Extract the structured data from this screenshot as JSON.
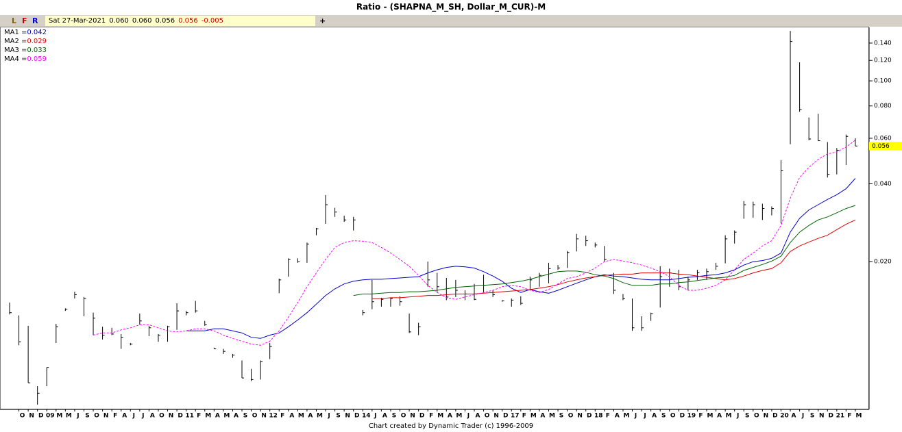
{
  "chart_data": {
    "type": "ohlc",
    "title": "Ratio - (SHAPNA_M_SH, Dollar_M_CUR)-M",
    "categories": [
      null,
      "O",
      "N",
      "D",
      "09",
      "M",
      "M",
      "J",
      "S",
      "O",
      "N",
      "F",
      "A",
      "J",
      "J",
      "A",
      "O",
      "N",
      "D",
      "11",
      "F",
      "M",
      "A",
      "M",
      "A",
      "S",
      "O",
      "N",
      "12",
      "F",
      "A",
      "M",
      "A",
      "M",
      "J",
      "S",
      "N",
      "D",
      "14",
      "J",
      "A",
      "S",
      "O",
      "N",
      "D",
      "F",
      "M",
      "A",
      "M",
      "J",
      "A",
      "O",
      "N",
      "D",
      "17",
      "F",
      "M",
      "A",
      "M",
      "S",
      "O",
      "N",
      "D",
      "18",
      "F",
      "A",
      "M",
      "J",
      "J",
      "A",
      "S",
      "O",
      "D",
      "19",
      "F",
      "M",
      "A",
      "M",
      "J",
      "S",
      "O",
      "N",
      "D",
      "20",
      "A",
      "J",
      "S",
      "N",
      "D",
      "21",
      "F",
      "M"
    ],
    "high": [
      0.0139,
      0.0124,
      0.0113,
      0.0066,
      0.0078,
      0.0115,
      0.0132,
      0.0153,
      0.0146,
      0.0127,
      0.0112,
      0.0111,
      0.0105,
      0.0097,
      0.0126,
      0.0113,
      0.0105,
      0.0113,
      0.0138,
      0.0129,
      0.0141,
      0.0118,
      0.0093,
      0.0092,
      0.0088,
      0.0083,
      0.0077,
      0.0083,
      0.0097,
      0.0172,
      0.0206,
      0.0206,
      0.0237,
      0.027,
      0.0362,
      0.0323,
      0.0301,
      0.0298,
      0.013,
      0.017,
      0.0145,
      0.0145,
      0.0147,
      0.0126,
      0.0116,
      0.02,
      0.0181,
      0.0173,
      0.017,
      0.0155,
      0.0164,
      0.0178,
      0.0155,
      0.0142,
      0.0144,
      0.0147,
      0.0175,
      0.0181,
      0.0198,
      0.0194,
      0.022,
      0.0256,
      0.0252,
      0.0237,
      0.023,
      0.0181,
      0.015,
      0.0144,
      0.0123,
      0.0127,
      0.0192,
      0.0188,
      0.0186,
      0.0175,
      0.0186,
      0.0188,
      0.0198,
      0.0253,
      0.0264,
      0.0343,
      0.0341,
      0.0335,
      0.0327,
      0.0494,
      0.156,
      0.118,
      0.0722,
      0.0746,
      0.058,
      0.055,
      0.062,
      0.06
    ],
    "low": [
      0.0125,
      0.0095,
      0.0068,
      0.0056,
      0.0066,
      0.0097,
      0.0129,
      0.0144,
      0.0123,
      0.0104,
      0.01,
      0.0104,
      0.0092,
      0.0095,
      0.0114,
      0.0103,
      0.0098,
      0.0098,
      0.0109,
      0.0124,
      0.0127,
      0.0113,
      0.0092,
      0.0088,
      0.0085,
      0.0071,
      0.0069,
      0.007,
      0.0084,
      0.0151,
      0.0175,
      0.0198,
      0.0198,
      0.0253,
      0.028,
      0.0298,
      0.0285,
      0.0264,
      0.0124,
      0.0131,
      0.0134,
      0.0134,
      0.0135,
      0.0106,
      0.0104,
      0.016,
      0.0152,
      0.0142,
      0.0146,
      0.0142,
      0.0142,
      0.0152,
      0.0146,
      0.014,
      0.0134,
      0.0136,
      0.0155,
      0.016,
      0.0165,
      0.0186,
      0.0189,
      0.0219,
      0.023,
      0.0227,
      0.02,
      0.015,
      0.0142,
      0.0108,
      0.0108,
      0.0118,
      0.0133,
      0.016,
      0.0155,
      0.0155,
      0.017,
      0.017,
      0.0186,
      0.0197,
      0.0235,
      0.0293,
      0.0296,
      0.029,
      0.0302,
      0.0281,
      0.0569,
      0.076,
      0.059,
      0.0586,
      0.0423,
      0.0435,
      0.0473,
      0.056
    ],
    "close": [
      0.0127,
      0.0098,
      0.0068,
      0.0062,
      0.0078,
      0.0112,
      0.0131,
      0.0149,
      0.0144,
      0.0121,
      0.0104,
      0.0105,
      0.0102,
      0.0096,
      0.0118,
      0.0111,
      0.0104,
      0.0112,
      0.0129,
      0.0127,
      0.0129,
      0.0114,
      0.0092,
      0.009,
      0.0087,
      0.0071,
      0.007,
      0.0082,
      0.0094,
      0.017,
      0.0204,
      0.02,
      0.0234,
      0.0268,
      0.0332,
      0.0311,
      0.029,
      0.029,
      0.0127,
      0.014,
      0.0143,
      0.0144,
      0.014,
      0.0107,
      0.0112,
      0.017,
      0.016,
      0.0146,
      0.0155,
      0.015,
      0.0143,
      0.0162,
      0.0149,
      0.0141,
      0.0142,
      0.0138,
      0.017,
      0.0177,
      0.0188,
      0.0189,
      0.0217,
      0.0245,
      0.0241,
      0.0232,
      0.0204,
      0.0155,
      0.0144,
      0.0111,
      0.0111,
      0.0126,
      0.0175,
      0.0181,
      0.016,
      0.017,
      0.0181,
      0.0183,
      0.0192,
      0.0245,
      0.026,
      0.0332,
      0.0332,
      0.0321,
      0.0321,
      0.0449,
      0.142,
      0.0776,
      0.0596,
      0.0587,
      0.0435,
      0.0539,
      0.061,
      0.056
    ],
    "bar_color": "#000000",
    "series": [
      {
        "name": "MA1 =",
        "legend_label": "0.042",
        "color": "#0000cc",
        "dashed": false,
        "values": [
          null,
          null,
          null,
          null,
          null,
          null,
          null,
          null,
          null,
          null,
          null,
          null,
          null,
          null,
          null,
          null,
          null,
          null,
          null,
          0.0108,
          0.0108,
          0.0108,
          0.011,
          0.011,
          0.0108,
          0.0106,
          0.0102,
          0.0101,
          0.0104,
          0.0106,
          0.0112,
          0.0119,
          0.0127,
          0.0137,
          0.0148,
          0.0157,
          0.0164,
          0.0168,
          0.017,
          0.0171,
          0.0171,
          0.0172,
          0.0173,
          0.0174,
          0.0175,
          0.0181,
          0.0186,
          0.019,
          0.0192,
          0.0191,
          0.0189,
          0.0183,
          0.0176,
          0.0168,
          0.0158,
          0.0152,
          0.0156,
          0.0153,
          0.0151,
          0.0155,
          0.016,
          0.0165,
          0.017,
          0.0175,
          0.0178,
          0.0176,
          0.0175,
          0.0173,
          0.0171,
          0.017,
          0.017,
          0.017,
          0.0172,
          0.0174,
          0.0175,
          0.0177,
          0.0178,
          0.0181,
          0.0186,
          0.0194,
          0.02,
          0.0202,
          0.0206,
          0.0216,
          0.026,
          0.0294,
          0.0317,
          0.0332,
          0.0348,
          0.0363,
          0.0383,
          0.042
        ]
      },
      {
        "name": "MA2 =",
        "legend_label": "0.029",
        "color": "#e00000",
        "dashed": false,
        "values": [
          null,
          null,
          null,
          null,
          null,
          null,
          null,
          null,
          null,
          null,
          null,
          null,
          null,
          null,
          null,
          null,
          null,
          null,
          null,
          null,
          null,
          null,
          null,
          null,
          null,
          null,
          null,
          null,
          null,
          null,
          null,
          null,
          null,
          null,
          null,
          null,
          null,
          null,
          null,
          0.0144,
          0.0144,
          0.0145,
          0.0145,
          0.0146,
          0.0147,
          0.0148,
          0.0148,
          0.0149,
          0.015,
          0.015,
          0.015,
          0.0151,
          0.0152,
          0.0153,
          0.0154,
          0.0155,
          0.0156,
          0.0158,
          0.016,
          0.0163,
          0.0167,
          0.017,
          0.0173,
          0.0175,
          0.0177,
          0.0178,
          0.0179,
          0.0179,
          0.0181,
          0.0181,
          0.0181,
          0.0181,
          0.0179,
          0.0178,
          0.0176,
          0.0174,
          0.0172,
          0.017,
          0.0172,
          0.0176,
          0.0181,
          0.0185,
          0.0188,
          0.0198,
          0.0219,
          0.023,
          0.0238,
          0.0246,
          0.0253,
          0.0266,
          0.0279,
          0.029
        ]
      },
      {
        "name": "MA3 =",
        "legend_label": "0.033",
        "color": "#006400",
        "dashed": false,
        "values": [
          null,
          null,
          null,
          null,
          null,
          null,
          null,
          null,
          null,
          null,
          null,
          null,
          null,
          null,
          null,
          null,
          null,
          null,
          null,
          null,
          null,
          null,
          null,
          null,
          null,
          null,
          null,
          null,
          null,
          null,
          null,
          null,
          null,
          null,
          null,
          null,
          null,
          0.0148,
          0.015,
          0.015,
          0.0151,
          0.0152,
          0.0152,
          0.0153,
          0.0153,
          0.0154,
          0.0155,
          0.0157,
          0.0159,
          0.016,
          0.0161,
          0.0162,
          0.0163,
          0.0164,
          0.0166,
          0.0168,
          0.0171,
          0.0175,
          0.0179,
          0.0183,
          0.0184,
          0.0184,
          0.0182,
          0.0178,
          0.0176,
          0.0172,
          0.0166,
          0.0162,
          0.0162,
          0.0162,
          0.0164,
          0.0164,
          0.0166,
          0.0167,
          0.0169,
          0.0171,
          0.0173,
          0.0174,
          0.0177,
          0.0185,
          0.019,
          0.0195,
          0.0201,
          0.021,
          0.0237,
          0.026,
          0.0276,
          0.029,
          0.0298,
          0.0309,
          0.0321,
          0.033
        ]
      },
      {
        "name": "MA4 =",
        "legend_label": "0.059",
        "color": "#ff00ff",
        "dashed": true,
        "values": [
          null,
          null,
          null,
          null,
          null,
          null,
          null,
          null,
          null,
          0.0104,
          0.0106,
          0.0106,
          0.0109,
          0.0111,
          0.0114,
          0.0114,
          0.0111,
          0.0108,
          0.0107,
          0.0108,
          0.011,
          0.011,
          0.0108,
          0.0104,
          0.0101,
          0.00985,
          0.0096,
          0.0095,
          0.00985,
          0.0108,
          0.0122,
          0.0139,
          0.016,
          0.0181,
          0.0204,
          0.0227,
          0.0237,
          0.0241,
          0.024,
          0.0237,
          0.0227,
          0.0216,
          0.0204,
          0.0192,
          0.0177,
          0.0162,
          0.0152,
          0.0145,
          0.0143,
          0.0146,
          0.0149,
          0.0152,
          0.0155,
          0.016,
          0.0162,
          0.016,
          0.0155,
          0.0152,
          0.0156,
          0.0164,
          0.0172,
          0.0175,
          0.0181,
          0.0189,
          0.02,
          0.0204,
          0.0201,
          0.0198,
          0.0194,
          0.0189,
          0.0183,
          0.0175,
          0.0162,
          0.0155,
          0.0155,
          0.0158,
          0.0162,
          0.017,
          0.0186,
          0.0204,
          0.0216,
          0.023,
          0.0241,
          0.0276,
          0.0352,
          0.0423,
          0.0463,
          0.0497,
          0.0522,
          0.0531,
          0.0555,
          0.059
        ]
      }
    ],
    "log_scale": true,
    "ylim": [
      0.0054,
      0.161
    ],
    "yticks": [
      {
        "value": 0.02,
        "label": "0.020"
      },
      {
        "value": 0.04,
        "label": "0.040"
      },
      {
        "value": 0.06,
        "label": "0.060"
      },
      {
        "value": 0.08,
        "label": "0.080"
      },
      {
        "value": 0.1,
        "label": "0.100"
      },
      {
        "value": 0.12,
        "label": "0.120"
      },
      {
        "value": 0.14,
        "label": "0.140"
      }
    ],
    "last_label": {
      "value": 0.056,
      "label": "0.056",
      "color": "#ffff00"
    }
  },
  "ui": {
    "buttons": [
      {
        "text": "L",
        "color": "#806000"
      },
      {
        "text": "F",
        "color": "#cc0000"
      },
      {
        "text": "R",
        "color": "#0000cc"
      }
    ],
    "readout": [
      {
        "text": "Sat 27-Mar-2021",
        "color": "#000000"
      },
      {
        "text": "0.060",
        "color": "#000000"
      },
      {
        "text": "0.060",
        "color": "#000000"
      },
      {
        "text": "0.056",
        "color": "#000000"
      },
      {
        "text": "0.056",
        "color": "#cc0000"
      },
      {
        "text": "-0.005",
        "color": "#cc0000"
      }
    ],
    "add_button": "+",
    "footer": "Chart created by Dynamic Trader  (c) 1996-2009"
  }
}
